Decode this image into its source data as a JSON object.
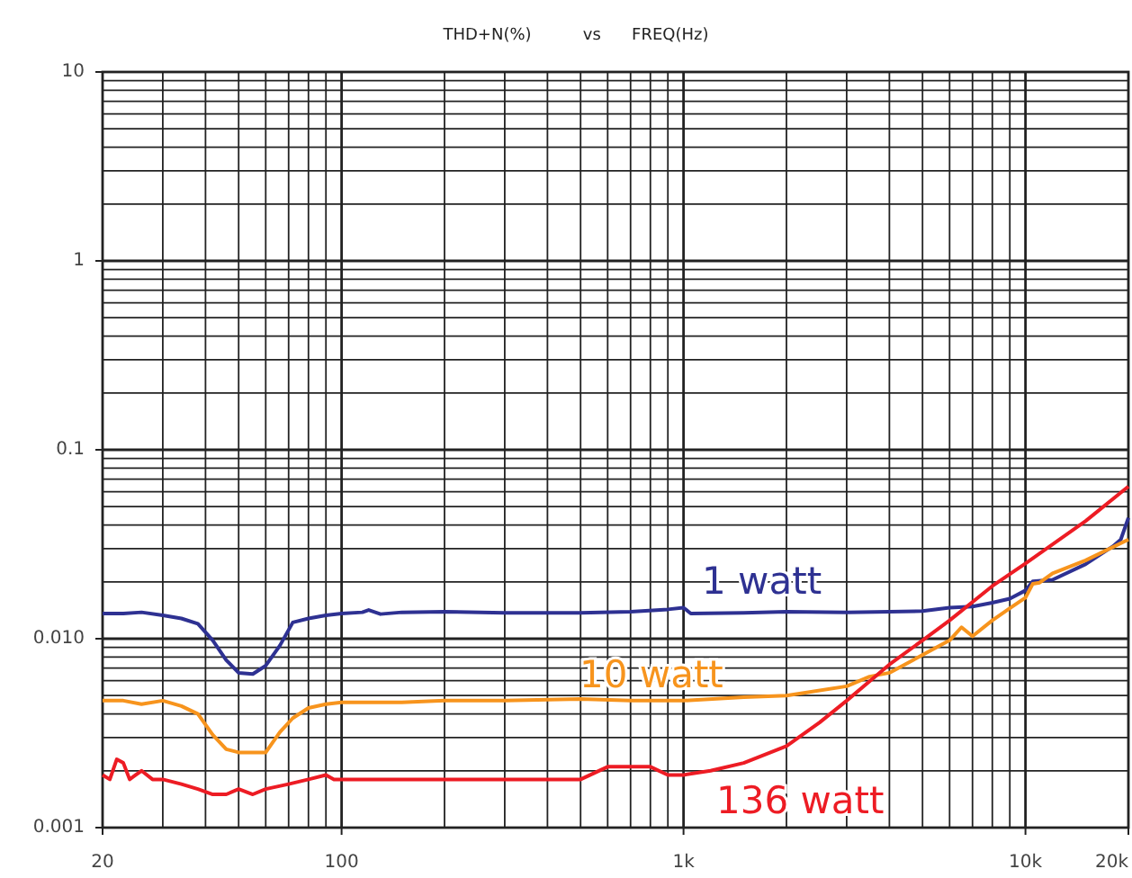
{
  "chart_data": {
    "type": "line",
    "title": "THD+N(%)          vs      FREQ(Hz)",
    "log": "xy",
    "grid": true,
    "xlim": [
      20,
      20000
    ],
    "xticks": [
      20,
      100,
      {
        "value": 1000,
        "label": "1k"
      },
      {
        "value": 10000,
        "label": "10k"
      },
      {
        "value": 20000,
        "label": "20k"
      }
    ],
    "ylim": [
      0.001,
      10
    ],
    "yticks": [
      0.001,
      {
        "value": 0.01,
        "label": "0.010"
      },
      0.1,
      1,
      10
    ],
    "series": [
      {
        "name": "1 watt",
        "color": "#2e3192",
        "x": [
          20,
          23,
          26,
          30,
          34,
          38,
          42,
          46,
          50,
          55,
          60,
          66,
          72,
          80,
          90,
          100,
          115,
          120,
          130,
          150,
          200,
          300,
          500,
          700,
          900,
          1000,
          1050,
          1500,
          2000,
          3000,
          4000,
          5000,
          6000,
          7000,
          8000,
          9000,
          10000,
          10500,
          12000,
          15000,
          18000,
          19000,
          20000
        ],
        "values": [
          0.0136,
          0.0136,
          0.0138,
          0.0133,
          0.0128,
          0.012,
          0.0098,
          0.0077,
          0.0066,
          0.0065,
          0.0072,
          0.0092,
          0.0122,
          0.0128,
          0.0133,
          0.0136,
          0.0138,
          0.0142,
          0.0135,
          0.0138,
          0.0139,
          0.0137,
          0.0137,
          0.0139,
          0.0143,
          0.0146,
          0.0136,
          0.0137,
          0.0139,
          0.0138,
          0.0139,
          0.014,
          0.0146,
          0.0148,
          0.0155,
          0.0163,
          0.018,
          0.0201,
          0.0205,
          0.0248,
          0.0308,
          0.0335,
          0.0436
        ]
      },
      {
        "name": "10 watt",
        "color": "#f7941d",
        "x": [
          20,
          23,
          26,
          30,
          34,
          38,
          42,
          46,
          50,
          55,
          60,
          66,
          72,
          80,
          90,
          100,
          150,
          200,
          300,
          500,
          700,
          1000,
          1500,
          2000,
          3000,
          3500,
          4000,
          5000,
          6000,
          6500,
          7000,
          8000,
          9000,
          10000,
          10500,
          11000,
          12000,
          15000,
          20000
        ],
        "values": [
          0.0047,
          0.0047,
          0.0045,
          0.0047,
          0.0044,
          0.004,
          0.0031,
          0.0026,
          0.0025,
          0.0025,
          0.0025,
          0.0032,
          0.0038,
          0.0043,
          0.0045,
          0.0046,
          0.0046,
          0.0047,
          0.0047,
          0.0048,
          0.0047,
          0.0047,
          0.0049,
          0.005,
          0.0056,
          0.0063,
          0.0066,
          0.0082,
          0.0098,
          0.0115,
          0.0103,
          0.0125,
          0.0145,
          0.0165,
          0.0195,
          0.0198,
          0.0222,
          0.026,
          0.0335
        ]
      },
      {
        "name": "136 watt",
        "color": "#ed1c24",
        "x": [
          20,
          21,
          22,
          23,
          24,
          25,
          26,
          28,
          30,
          34,
          38,
          42,
          46,
          50,
          55,
          60,
          70,
          80,
          90,
          95,
          100,
          120,
          150,
          200,
          300,
          400,
          500,
          600,
          650,
          800,
          900,
          1000,
          1200,
          1500,
          2000,
          2500,
          3000,
          4000,
          5000,
          6000,
          8000,
          10000,
          15000,
          20000
        ],
        "values": [
          0.0019,
          0.0018,
          0.0023,
          0.0022,
          0.0018,
          0.0019,
          0.002,
          0.0018,
          0.0018,
          0.0017,
          0.0016,
          0.0015,
          0.0015,
          0.0016,
          0.0015,
          0.0016,
          0.0017,
          0.0018,
          0.0019,
          0.0018,
          0.0018,
          0.0018,
          0.0018,
          0.0018,
          0.0018,
          0.0018,
          0.0018,
          0.0021,
          0.0021,
          0.0021,
          0.0019,
          0.0019,
          0.002,
          0.0022,
          0.0027,
          0.0036,
          0.0047,
          0.0073,
          0.0098,
          0.0125,
          0.019,
          0.025,
          0.042,
          0.064
        ]
      }
    ]
  }
}
